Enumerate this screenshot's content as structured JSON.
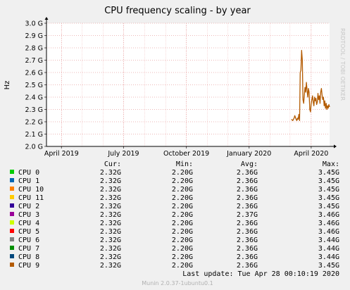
{
  "chart_data": {
    "type": "line",
    "title": "CPU frequency scaling - by year",
    "ylabel": "Hz",
    "watermark": "RRDTOOL / TOBI OETIKER",
    "y_ticks": [
      "2.0 G",
      "2.1 G",
      "2.2 G",
      "2.3 G",
      "2.4 G",
      "2.5 G",
      "2.6 G",
      "2.7 G",
      "2.8 G",
      "2.9 G",
      "3.0 G"
    ],
    "ylim": [
      2.0,
      3.0
    ],
    "x_ticks": [
      "April 2019",
      "July 2019",
      "October 2019",
      "January 2020",
      "April 2020"
    ],
    "x_tick_dates": [
      "2019-04-01",
      "2019-07-01",
      "2019-10-01",
      "2020-01-01",
      "2020-04-01"
    ],
    "xlim": [
      "2019-03-10",
      "2020-04-28"
    ],
    "grid": true,
    "columns": [
      "",
      "Cur:",
      "Min:",
      "Avg:",
      "Max:"
    ],
    "series": [
      {
        "name": "CPU 0",
        "color": "#00cc00",
        "cur": "2.32G",
        "min": "2.20G",
        "avg": "2.36G",
        "max": "3.45G"
      },
      {
        "name": "CPU 1",
        "color": "#0066b3",
        "cur": "2.32G",
        "min": "2.20G",
        "avg": "2.36G",
        "max": "3.45G"
      },
      {
        "name": "CPU 10",
        "color": "#ff8000",
        "cur": "2.32G",
        "min": "2.20G",
        "avg": "2.36G",
        "max": "3.45G"
      },
      {
        "name": "CPU 11",
        "color": "#ffcc00",
        "cur": "2.32G",
        "min": "2.20G",
        "avg": "2.36G",
        "max": "3.45G"
      },
      {
        "name": "CPU 2",
        "color": "#330099",
        "cur": "2.32G",
        "min": "2.20G",
        "avg": "2.36G",
        "max": "3.45G"
      },
      {
        "name": "CPU 3",
        "color": "#990099",
        "cur": "2.32G",
        "min": "2.20G",
        "avg": "2.37G",
        "max": "3.46G"
      },
      {
        "name": "CPU 4",
        "color": "#ccff00",
        "cur": "2.32G",
        "min": "2.20G",
        "avg": "2.36G",
        "max": "3.46G"
      },
      {
        "name": "CPU 5",
        "color": "#ff0000",
        "cur": "2.32G",
        "min": "2.20G",
        "avg": "2.36G",
        "max": "3.46G"
      },
      {
        "name": "CPU 6",
        "color": "#808080",
        "cur": "2.32G",
        "min": "2.20G",
        "avg": "2.36G",
        "max": "3.44G"
      },
      {
        "name": "CPU 7",
        "color": "#008f00",
        "cur": "2.32G",
        "min": "2.20G",
        "avg": "2.36G",
        "max": "3.44G"
      },
      {
        "name": "CPU 8",
        "color": "#00487d",
        "cur": "2.32G",
        "min": "2.20G",
        "avg": "2.36G",
        "max": "3.44G"
      },
      {
        "name": "CPU 9",
        "color": "#b35a00",
        "cur": "2.32G",
        "min": "2.20G",
        "avg": "2.36G",
        "max": "3.45G"
      }
    ],
    "line": {
      "x": [
        "2020-03-03",
        "2020-03-05",
        "2020-03-07",
        "2020-03-08",
        "2020-03-10",
        "2020-03-11",
        "2020-03-12",
        "2020-03-13",
        "2020-03-14",
        "2020-03-15",
        "2020-03-16",
        "2020-03-17",
        "2020-03-18",
        "2020-03-19",
        "2020-03-20",
        "2020-03-21",
        "2020-03-22",
        "2020-03-23",
        "2020-03-24",
        "2020-03-25",
        "2020-03-26",
        "2020-03-27",
        "2020-03-28",
        "2020-03-29",
        "2020-03-30",
        "2020-03-31",
        "2020-04-01",
        "2020-04-02",
        "2020-04-03",
        "2020-04-04",
        "2020-04-05",
        "2020-04-06",
        "2020-04-07",
        "2020-04-08",
        "2020-04-09",
        "2020-04-10",
        "2020-04-11",
        "2020-04-12",
        "2020-04-13",
        "2020-04-14",
        "2020-04-15",
        "2020-04-16",
        "2020-04-17",
        "2020-04-18",
        "2020-04-19",
        "2020-04-20",
        "2020-04-21",
        "2020-04-22",
        "2020-04-23",
        "2020-04-24",
        "2020-04-25",
        "2020-04-26",
        "2020-04-27",
        "2020-04-28"
      ],
      "y": [
        2.22,
        2.21,
        2.23,
        2.25,
        2.22,
        2.21,
        2.23,
        2.22,
        2.26,
        2.21,
        2.6,
        2.62,
        2.78,
        2.7,
        2.38,
        2.35,
        2.42,
        2.48,
        2.44,
        2.52,
        2.46,
        2.4,
        2.47,
        2.44,
        2.3,
        2.28,
        2.34,
        2.38,
        2.41,
        2.36,
        2.33,
        2.4,
        2.37,
        2.39,
        2.34,
        2.36,
        2.43,
        2.38,
        2.41,
        2.35,
        2.44,
        2.47,
        2.42,
        2.38,
        2.4,
        2.33,
        2.37,
        2.31,
        2.35,
        2.3,
        2.33,
        2.31,
        2.34,
        2.32
      ]
    }
  },
  "footer": {
    "last_update": "Last update: Tue Apr 28 00:10:19 2020",
    "version": "Munin 2.0.37-1ubuntu0.1"
  }
}
